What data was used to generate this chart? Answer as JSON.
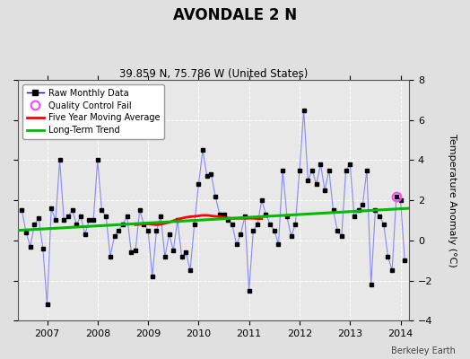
{
  "title": "AVONDALE 2 N",
  "subtitle": "39.859 N, 75.786 W (United States)",
  "ylabel": "Temperature Anomaly (°C)",
  "credit": "Berkeley Earth",
  "ylim": [
    -4,
    8
  ],
  "yticks": [
    -4,
    -2,
    0,
    2,
    4,
    6,
    8
  ],
  "xlim": [
    2006.42,
    2014.17
  ],
  "xticks": [
    2007,
    2008,
    2009,
    2010,
    2011,
    2012,
    2013,
    2014
  ],
  "fig_bg_color": "#e0e0e0",
  "plot_bg_color": "#e8e8e8",
  "raw_line_color": "#8888ff",
  "raw_marker_color": "#000000",
  "moving_avg_color": "#ff0000",
  "trend_color": "#00bb00",
  "qc_fail_color": "#ff44ff",
  "raw_data_x": [
    2006.5,
    2006.583,
    2006.667,
    2006.75,
    2006.833,
    2006.917,
    2007.0,
    2007.083,
    2007.167,
    2007.25,
    2007.333,
    2007.417,
    2007.5,
    2007.583,
    2007.667,
    2007.75,
    2007.833,
    2007.917,
    2008.0,
    2008.083,
    2008.167,
    2008.25,
    2008.333,
    2008.417,
    2008.5,
    2008.583,
    2008.667,
    2008.75,
    2008.833,
    2008.917,
    2009.0,
    2009.083,
    2009.167,
    2009.25,
    2009.333,
    2009.417,
    2009.5,
    2009.583,
    2009.667,
    2009.75,
    2009.833,
    2009.917,
    2010.0,
    2010.083,
    2010.167,
    2010.25,
    2010.333,
    2010.417,
    2010.5,
    2010.583,
    2010.667,
    2010.75,
    2010.833,
    2010.917,
    2011.0,
    2011.083,
    2011.167,
    2011.25,
    2011.333,
    2011.417,
    2011.5,
    2011.583,
    2011.667,
    2011.75,
    2011.833,
    2011.917,
    2012.0,
    2012.083,
    2012.167,
    2012.25,
    2012.333,
    2012.417,
    2012.5,
    2012.583,
    2012.667,
    2012.75,
    2012.833,
    2012.917,
    2013.0,
    2013.083,
    2013.167,
    2013.25,
    2013.333,
    2013.417,
    2013.5,
    2013.583,
    2013.667,
    2013.75,
    2013.833,
    2013.917,
    2014.0,
    2014.083
  ],
  "raw_data_y": [
    1.5,
    0.4,
    -0.3,
    0.8,
    1.1,
    -0.4,
    -3.2,
    1.6,
    1.0,
    4.0,
    1.0,
    1.2,
    1.5,
    0.8,
    1.2,
    0.3,
    1.0,
    1.0,
    4.0,
    1.5,
    1.2,
    -0.8,
    0.2,
    0.5,
    0.8,
    1.2,
    -0.6,
    -0.5,
    1.5,
    0.8,
    0.5,
    -1.8,
    0.5,
    1.2,
    -0.8,
    0.3,
    -0.5,
    1.0,
    -0.8,
    -0.6,
    -1.5,
    0.8,
    2.8,
    4.5,
    3.2,
    3.3,
    2.2,
    1.3,
    1.3,
    1.0,
    0.8,
    -0.2,
    0.3,
    1.2,
    -2.5,
    0.5,
    0.8,
    2.0,
    1.3,
    0.8,
    0.5,
    -0.2,
    3.5,
    1.2,
    0.2,
    0.8,
    3.5,
    6.5,
    3.0,
    3.5,
    2.8,
    3.8,
    2.5,
    3.5,
    1.5,
    0.5,
    0.2,
    3.5,
    3.8,
    1.2,
    1.5,
    1.8,
    3.5,
    -2.2,
    1.5,
    1.2,
    0.8,
    -0.8,
    -1.5,
    2.2,
    2.0,
    -1.0
  ],
  "moving_avg_x": [
    2008.75,
    2008.833,
    2008.917,
    2009.0,
    2009.083,
    2009.167,
    2009.25,
    2009.333,
    2009.417,
    2009.5,
    2009.583,
    2009.667,
    2009.75,
    2009.833,
    2009.917,
    2010.0,
    2010.083,
    2010.167,
    2010.25,
    2010.333,
    2010.417,
    2010.5,
    2010.583,
    2010.667,
    2010.75,
    2010.833,
    2010.917,
    2011.0,
    2011.083,
    2011.167,
    2011.25
  ],
  "moving_avg_y": [
    0.78,
    0.8,
    0.82,
    0.82,
    0.8,
    0.78,
    0.8,
    0.85,
    0.9,
    0.98,
    1.05,
    1.1,
    1.15,
    1.18,
    1.2,
    1.22,
    1.25,
    1.25,
    1.22,
    1.2,
    1.18,
    1.15,
    1.12,
    1.1,
    1.1,
    1.1,
    1.1,
    1.1,
    1.1,
    1.08,
    1.08
  ],
  "trend_x": [
    2006.42,
    2014.17
  ],
  "trend_y": [
    0.5,
    1.6
  ],
  "qc_fail_x": [
    2013.917
  ],
  "qc_fail_y": [
    2.2
  ]
}
